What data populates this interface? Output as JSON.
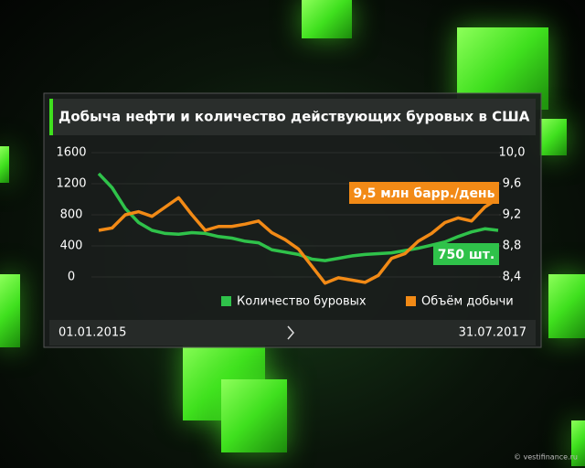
{
  "chart_data": {
    "type": "line",
    "title": "Добыча нефти и количество действующих буровых в США",
    "categories": [
      "01.01.2015",
      null,
      null,
      null,
      null,
      null,
      null,
      null,
      null,
      null,
      null,
      null,
      null,
      null,
      null,
      null,
      null,
      null,
      null,
      null,
      null,
      null,
      null,
      null,
      null,
      null,
      null,
      null,
      null,
      null,
      "31.07.2017"
    ],
    "series": [
      {
        "name": "Количество буровых",
        "color": "#2fc24a",
        "axis": "y",
        "values": [
          1330,
          1150,
          880,
          700,
          600,
          560,
          550,
          570,
          560,
          520,
          500,
          460,
          440,
          350,
          320,
          290,
          230,
          210,
          240,
          270,
          290,
          300,
          310,
          340,
          370,
          410,
          450,
          520,
          580,
          620,
          600
        ]
      },
      {
        "name": "Объём добычи",
        "color": "#f28a16",
        "axis": "y2",
        "values": [
          9.0,
          9.03,
          9.2,
          9.24,
          9.18,
          9.3,
          9.42,
          9.2,
          9.0,
          9.05,
          9.05,
          9.08,
          9.12,
          8.97,
          8.88,
          8.76,
          8.54,
          8.32,
          8.39,
          8.36,
          8.33,
          8.42,
          8.64,
          8.7,
          8.86,
          8.96,
          9.1,
          9.16,
          9.12,
          9.3,
          9.41
        ]
      }
    ],
    "ylim": [
      0,
      1600
    ],
    "yticks": [
      0,
      400,
      800,
      1200,
      1600
    ],
    "y2lim": [
      8.4,
      10.0
    ],
    "y2ticks": [
      {
        "value": 8.4,
        "label": "8,4"
      },
      {
        "value": 8.8,
        "label": "8,8"
      },
      {
        "value": 9.2,
        "label": "9,2"
      },
      {
        "value": 9.6,
        "label": "9,6"
      },
      {
        "value": 10.0,
        "label": "10,0"
      }
    ],
    "grid": true,
    "annotations": [
      "9,5 млн барр./день",
      "750 шт."
    ],
    "source": "© vestifinance.ru"
  }
}
